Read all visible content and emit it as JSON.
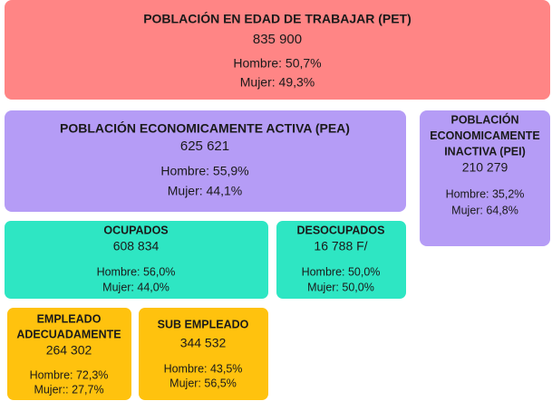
{
  "nodes": [
    {
      "title": [
        "POBLACIÓN EN EDAD DE TRABAJAR (PET)"
      ],
      "value": "835 900",
      "hombre": "Hombre:  50,7%",
      "mujer": "Mujer:  49,3%"
    },
    {
      "title": [
        "POBLACIÓN ECONOMICAMENTE ACTIVA (PEA)"
      ],
      "value": "625 621",
      "hombre": "Hombre:  55,9%",
      "mujer": "Mujer:  44,1%"
    },
    {
      "title": [
        "POBLACIÓN",
        "ECONOMICAMENTE",
        "INACTIVA (PEI)"
      ],
      "value": "210 279",
      "hombre": "Hombre:  35,2%",
      "mujer": "Mujer:  64,8%"
    },
    {
      "title": [
        "OCUPADOS"
      ],
      "value": "608 834",
      "hombre": "Hombre:  56,0%",
      "mujer": "Mujer:  44,0%"
    },
    {
      "title": [
        "DESOCUPADOS"
      ],
      "value": "16 788  F/",
      "hombre": "Hombre:  50,0%",
      "mujer": "Mujer:  50,0%"
    },
    {
      "title": [
        "EMPLEADO",
        "ADECUADAMENTE"
      ],
      "value": "264 302",
      "hombre": "Hombre:  72,3%",
      "mujer": "Mujer:: 27,7%"
    },
    {
      "title": [
        "SUB EMPLEADO"
      ],
      "value": "344 532",
      "hombre": "Hombre:  43,5%",
      "mujer": "Mujer:  56,5%"
    }
  ]
}
